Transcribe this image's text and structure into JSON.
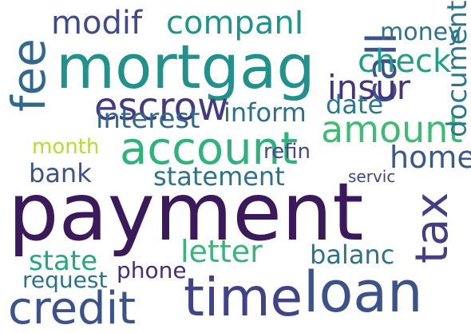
{
  "title": "",
  "words": [
    {
      "text": "payment",
      "color": "#3b1a5c"
    },
    {
      "text": "mortgag",
      "color": "#21918c"
    },
    {
      "text": "account",
      "color": "#2eb37c"
    },
    {
      "text": "loan",
      "color": "#3b528b"
    },
    {
      "text": "time",
      "color": "#404387"
    },
    {
      "text": "amount",
      "color": "#3fbc73"
    },
    {
      "text": "escrow",
      "color": "#443983"
    },
    {
      "text": "credit",
      "color": "#3b528b"
    },
    {
      "text": "companI",
      "color": "#1f948c"
    },
    {
      "text": "modif",
      "color": "#3e4a89"
    },
    {
      "text": "tax",
      "color": "#433e85"
    },
    {
      "text": "fee",
      "color": "#31688e"
    },
    {
      "text": "statement",
      "color": "#2c728e"
    },
    {
      "text": "interest",
      "color": "#31688e"
    },
    {
      "text": "call",
      "color": "#3b528b"
    },
    {
      "text": "insur",
      "color": "#46327e"
    },
    {
      "text": "check",
      "color": "#1f9e89"
    },
    {
      "text": "money",
      "color": "#2c728e"
    },
    {
      "text": "bank",
      "color": "#3b528b"
    },
    {
      "text": "inform",
      "color": "#2d708e"
    },
    {
      "text": "date",
      "color": "#2a788e"
    },
    {
      "text": "home",
      "color": "#38598c"
    },
    {
      "text": "letter",
      "color": "#35b779"
    },
    {
      "text": "state",
      "color": "#22a884"
    },
    {
      "text": "document",
      "color": "#2a788e"
    },
    {
      "text": "month",
      "color": "#b5de2b"
    },
    {
      "text": "balanc",
      "color": "#2c728e"
    },
    {
      "text": "phone",
      "color": "#472d7b"
    },
    {
      "text": "request",
      "color": "#2d708e"
    },
    {
      "text": "refin",
      "color": "#3e4a89"
    },
    {
      "text": "servic",
      "color": "#414487"
    }
  ]
}
